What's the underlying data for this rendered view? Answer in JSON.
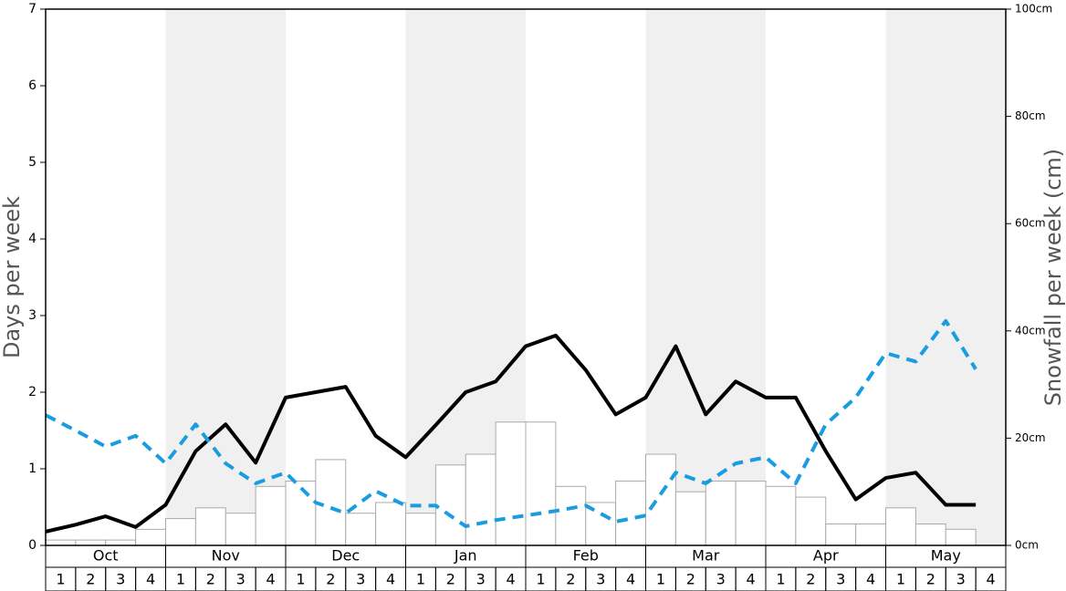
{
  "chart_data": {
    "type": "bar",
    "y_label": "Days per week",
    "y2_label": "Snowfall per week (cm)",
    "months": [
      "Oct",
      "Nov",
      "Dec",
      "Jan",
      "Feb",
      "Mar",
      "Apr",
      "May"
    ],
    "shade_color": "#f0f0f0",
    "categories": [
      "1",
      "2",
      "3",
      "4",
      "1",
      "2",
      "3",
      "4",
      "1",
      "2",
      "3",
      "4",
      "1",
      "2",
      "3",
      "4",
      "1",
      "2",
      "3",
      "4",
      "1",
      "2",
      "3",
      "4",
      "1",
      "2",
      "3",
      "4",
      "1",
      "2",
      "3",
      "4"
    ],
    "ylim": [
      0,
      7
    ],
    "yticks": [
      0,
      1,
      2,
      3,
      4,
      5,
      6,
      7
    ],
    "y2lim": [
      0,
      100
    ],
    "y2ticks": [
      {
        "value": 0,
        "label": "0cm"
      },
      {
        "value": 20,
        "label": "20cm"
      },
      {
        "value": 40,
        "label": "40cm"
      },
      {
        "value": 60,
        "label": "60cm"
      },
      {
        "value": 80,
        "label": "80cm"
      },
      {
        "value": 100,
        "label": "100cm"
      }
    ],
    "series": [
      {
        "type": "bar",
        "axis": "y2",
        "color": "#ffffff",
        "stroke": "#aaaaaa",
        "values": [
          1,
          1,
          1,
          3,
          5,
          7,
          6,
          11,
          12,
          16,
          6,
          8,
          6,
          15,
          17,
          23,
          23,
          11,
          8,
          12,
          17,
          10,
          12,
          12,
          11,
          9,
          4,
          4,
          7,
          4,
          3,
          0
        ]
      },
      {
        "type": "line",
        "color": "#000000",
        "dashed": false,
        "values": [
          0.18,
          0.27,
          0.38,
          0.24,
          0.53,
          1.23,
          1.58,
          1.08,
          1.93,
          2.0,
          2.07,
          1.43,
          1.15,
          1.57,
          2.0,
          2.14,
          2.6,
          2.74,
          2.29,
          1.71,
          1.93,
          2.6,
          1.71,
          2.14,
          1.93,
          1.93,
          1.23,
          0.6,
          0.88,
          0.95,
          0.53,
          0.53
        ]
      },
      {
        "type": "line",
        "color": "#1a9de0",
        "dashed": true,
        "values": [
          1.7,
          1.5,
          1.29,
          1.43,
          1.07,
          1.58,
          1.07,
          0.81,
          0.95,
          0.56,
          0.42,
          0.71,
          0.52,
          0.52,
          0.25,
          0.33,
          0.39,
          0.45,
          0.52,
          0.31,
          0.39,
          0.95,
          0.81,
          1.07,
          1.15,
          0.81,
          1.58,
          1.93,
          2.51,
          2.4,
          2.93,
          2.3
        ]
      }
    ]
  }
}
